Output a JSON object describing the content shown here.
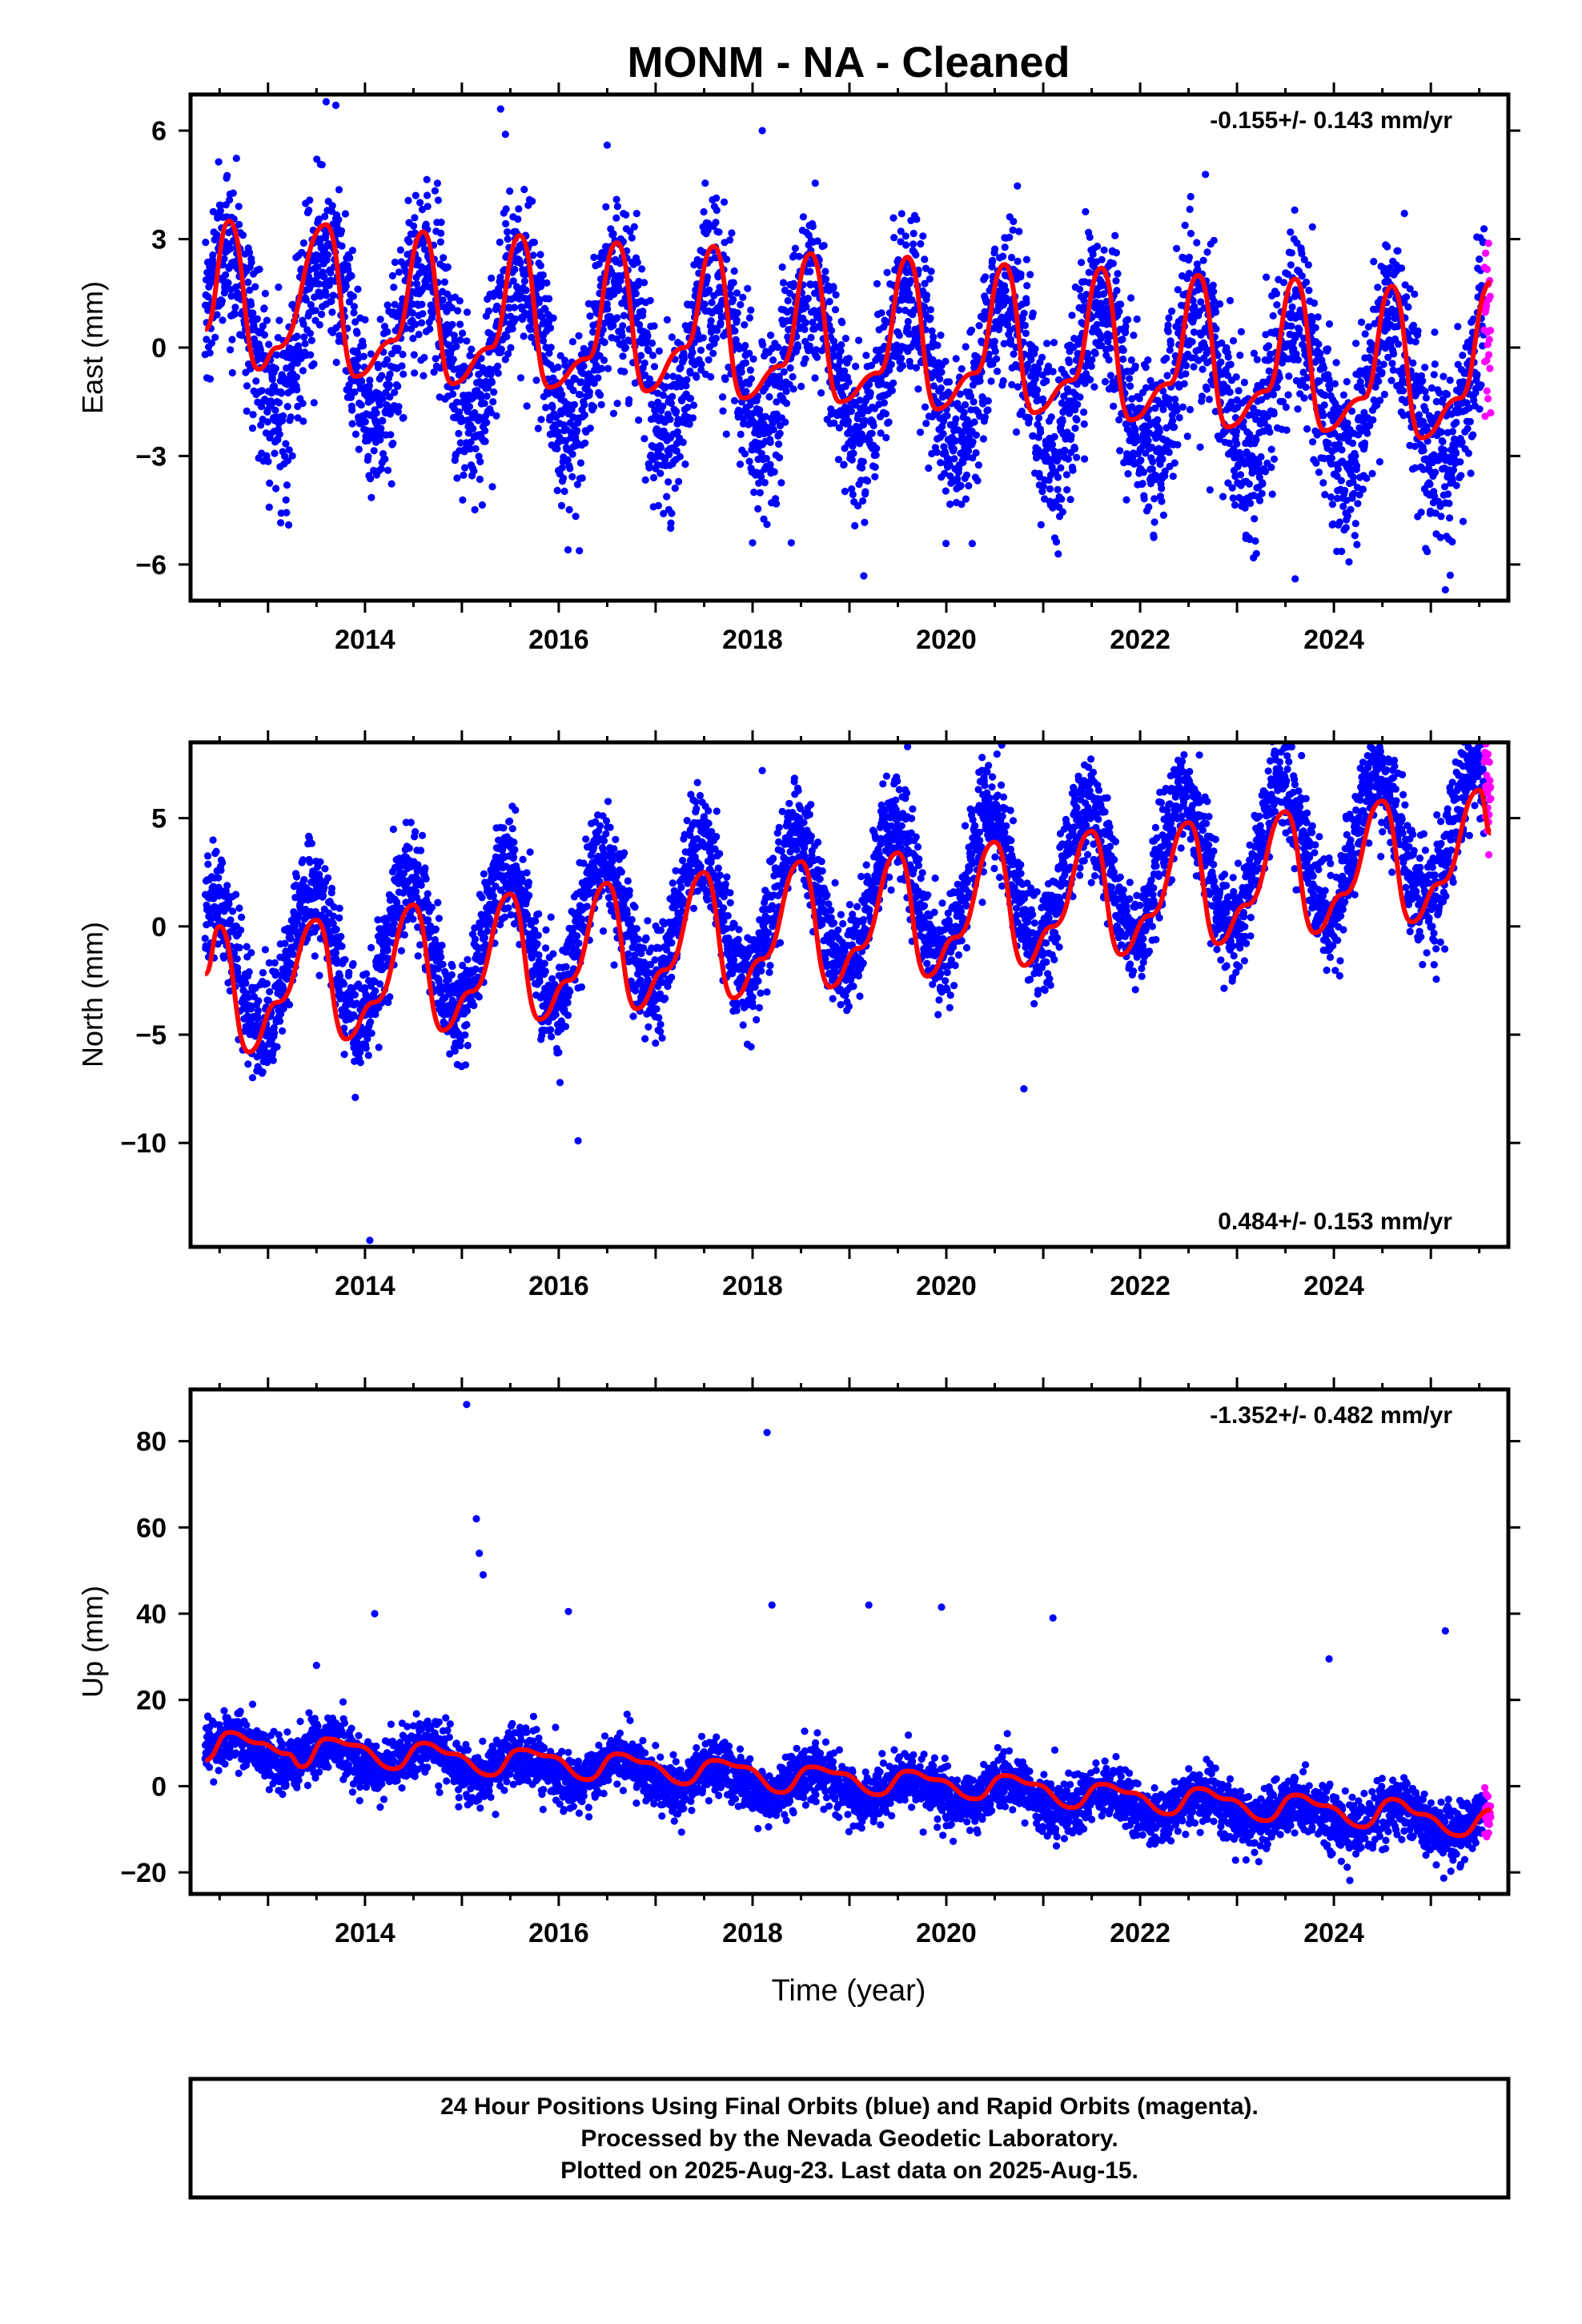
{
  "title": "MONM  - NA - Cleaned",
  "xlabel": "Time (year)",
  "footer": [
    "24 Hour Positions Using Final Orbits (blue) and Rapid Orbits (magenta).",
    "Processed by the Nevada Geodetic Laboratory.",
    "Plotted on 2025-Aug-23. Last data on 2025-Aug-15."
  ],
  "colors": {
    "final": "#0000ff",
    "rapid": "#ff00ff",
    "fit": "#ff0000",
    "frame": "#000000"
  },
  "chart_data": [
    {
      "type": "scatter",
      "ylabel": "East (mm)",
      "rate_label": "-0.155+/- 0.143 mm/yr",
      "rate_position": "top-right",
      "xlim": [
        2012.2,
        2025.8
      ],
      "ylim": [
        -7,
        7
      ],
      "xticks": [
        2014,
        2016,
        2018,
        2020,
        2022,
        2024
      ],
      "yticks": [
        6,
        3,
        0,
        -3,
        -6
      ],
      "ytick_labels": [
        "6",
        "3",
        "0",
        "−3",
        "−6"
      ],
      "data_start": 2012.35,
      "data_end": 2025.62,
      "rapid_start": 2025.55,
      "trend": {
        "offset_at_start": 0.6,
        "rate_mm_per_yr": -0.155,
        "annual_amp": 2.1,
        "annual_peak": 0.6,
        "noise": 1.2
      },
      "outliers": [
        [
          2013.6,
          6.8
        ],
        [
          2013.7,
          6.7
        ],
        [
          2015.4,
          6.6
        ],
        [
          2015.45,
          5.9
        ],
        [
          2016.5,
          5.6
        ],
        [
          2018.1,
          6.0
        ],
        [
          2018.0,
          -5.4
        ],
        [
          2018.4,
          -5.4
        ],
        [
          2023.2,
          -5.7
        ],
        [
          2023.6,
          -6.4
        ],
        [
          2025.15,
          -6.7
        ],
        [
          2025.2,
          -6.3
        ]
      ],
      "fit_series": {
        "name": "",
        "points": [
          [
            2012.35,
            0.5
          ],
          [
            2012.6,
            3.5
          ],
          [
            2012.9,
            -0.6
          ],
          [
            2013.1,
            0.0
          ],
          [
            2013.6,
            3.4
          ],
          [
            2013.9,
            -0.8
          ],
          [
            2014.3,
            0.2
          ],
          [
            2014.6,
            3.2
          ],
          [
            2014.9,
            -1.0
          ],
          [
            2015.3,
            0.0
          ],
          [
            2015.6,
            3.1
          ],
          [
            2015.9,
            -1.1
          ],
          [
            2016.3,
            -0.3
          ],
          [
            2016.6,
            2.9
          ],
          [
            2016.9,
            -1.2
          ],
          [
            2017.3,
            0.0
          ],
          [
            2017.6,
            2.8
          ],
          [
            2017.9,
            -1.4
          ],
          [
            2018.3,
            -0.5
          ],
          [
            2018.6,
            2.6
          ],
          [
            2018.9,
            -1.5
          ],
          [
            2019.3,
            -0.7
          ],
          [
            2019.6,
            2.5
          ],
          [
            2019.9,
            -1.7
          ],
          [
            2020.3,
            -0.7
          ],
          [
            2020.6,
            2.3
          ],
          [
            2020.9,
            -1.8
          ],
          [
            2021.3,
            -0.9
          ],
          [
            2021.6,
            2.2
          ],
          [
            2021.9,
            -2.0
          ],
          [
            2022.3,
            -1.0
          ],
          [
            2022.6,
            2.0
          ],
          [
            2022.9,
            -2.2
          ],
          [
            2023.3,
            -1.2
          ],
          [
            2023.6,
            1.9
          ],
          [
            2023.9,
            -2.3
          ],
          [
            2024.3,
            -1.4
          ],
          [
            2024.6,
            1.7
          ],
          [
            2024.9,
            -2.5
          ],
          [
            2025.3,
            -1.4
          ],
          [
            2025.62,
            1.8
          ]
        ]
      }
    },
    {
      "type": "scatter",
      "ylabel": "North (mm)",
      "rate_label": "0.484+/- 0.153 mm/yr",
      "rate_position": "bottom-right",
      "xlim": [
        2012.2,
        2025.8
      ],
      "ylim": [
        -14.8,
        8.5
      ],
      "xticks": [
        2014,
        2016,
        2018,
        2020,
        2022,
        2024
      ],
      "yticks": [
        5,
        0,
        -5,
        -10
      ],
      "ytick_labels": [
        "5",
        "0",
        "−5",
        "−10"
      ],
      "data_start": 2012.35,
      "data_end": 2025.62,
      "rapid_start": 2025.55,
      "trend": {
        "offset_at_start": -2.0,
        "rate_mm_per_yr": 0.484,
        "annual_amp": 3.2,
        "annual_peak": 0.45,
        "noise": 1.2
      },
      "outliers": [
        [
          2014.05,
          -14.5
        ],
        [
          2016.2,
          -9.9
        ],
        [
          2013.9,
          -7.9
        ],
        [
          2020.8,
          -7.5
        ],
        [
          2018.1,
          7.2
        ],
        [
          2019.6,
          8.3
        ]
      ],
      "fit_series": {
        "name": "",
        "points": [
          [
            2012.35,
            -2.2
          ],
          [
            2012.5,
            0.0
          ],
          [
            2012.8,
            -5.8
          ],
          [
            2013.1,
            -3.5
          ],
          [
            2013.5,
            0.3
          ],
          [
            2013.8,
            -5.2
          ],
          [
            2014.1,
            -3.5
          ],
          [
            2014.5,
            1.0
          ],
          [
            2014.8,
            -4.8
          ],
          [
            2015.1,
            -3.0
          ],
          [
            2015.5,
            1.5
          ],
          [
            2015.8,
            -4.3
          ],
          [
            2016.1,
            -2.5
          ],
          [
            2016.5,
            2.0
          ],
          [
            2016.8,
            -3.8
          ],
          [
            2017.1,
            -2.0
          ],
          [
            2017.5,
            2.5
          ],
          [
            2017.8,
            -3.3
          ],
          [
            2018.1,
            -1.5
          ],
          [
            2018.5,
            3.0
          ],
          [
            2018.8,
            -2.8
          ],
          [
            2019.1,
            -1.0
          ],
          [
            2019.5,
            3.4
          ],
          [
            2019.8,
            -2.3
          ],
          [
            2020.1,
            -0.5
          ],
          [
            2020.5,
            3.9
          ],
          [
            2020.8,
            -1.8
          ],
          [
            2021.1,
            0.0
          ],
          [
            2021.5,
            4.4
          ],
          [
            2021.8,
            -1.3
          ],
          [
            2022.1,
            0.5
          ],
          [
            2022.5,
            4.8
          ],
          [
            2022.8,
            -0.8
          ],
          [
            2023.1,
            1.0
          ],
          [
            2023.5,
            5.3
          ],
          [
            2023.8,
            -0.3
          ],
          [
            2024.1,
            1.5
          ],
          [
            2024.5,
            5.8
          ],
          [
            2024.8,
            0.2
          ],
          [
            2025.1,
            2.0
          ],
          [
            2025.5,
            6.3
          ],
          [
            2025.62,
            4.3
          ]
        ]
      }
    },
    {
      "type": "scatter",
      "ylabel": "Up (mm)",
      "xlabel": "Time (year)",
      "rate_label": "-1.352+/- 0.482 mm/yr",
      "rate_position": "top-right",
      "xlim": [
        2012.2,
        2025.8
      ],
      "ylim": [
        -25,
        92
      ],
      "xticks": [
        2014,
        2016,
        2018,
        2020,
        2022,
        2024
      ],
      "yticks": [
        80,
        60,
        40,
        20,
        0,
        -20
      ],
      "ytick_labels": [
        "80",
        "60",
        "40",
        "20",
        "0",
        "−20"
      ],
      "data_start": 2012.35,
      "data_end": 2025.62,
      "rapid_start": 2025.55,
      "trend": {
        "offset_at_start": 9.0,
        "rate_mm_per_yr": -1.352,
        "annual_amp": 3.0,
        "annual_peak": 0.65,
        "noise": 3.2
      },
      "outliers": [
        [
          2015.05,
          88.5
        ],
        [
          2015.15,
          62
        ],
        [
          2015.18,
          54
        ],
        [
          2015.22,
          49
        ],
        [
          2018.15,
          82
        ],
        [
          2018.2,
          42
        ],
        [
          2014.1,
          40
        ],
        [
          2016.1,
          40.5
        ],
        [
          2019.2,
          42
        ],
        [
          2019.95,
          41.5
        ],
        [
          2021.1,
          39
        ],
        [
          2023.95,
          29.5
        ],
        [
          2025.15,
          36
        ],
        [
          2013.5,
          28
        ]
      ],
      "fit_series": {
        "name": "",
        "points": [
          [
            2012.35,
            6.0
          ],
          [
            2012.6,
            12.5
          ],
          [
            2012.9,
            10.0
          ],
          [
            2013.2,
            7.5
          ],
          [
            2013.35,
            4.5
          ],
          [
            2013.6,
            11.0
          ],
          [
            2013.9,
            9.5
          ],
          [
            2014.3,
            4.0
          ],
          [
            2014.6,
            10.0
          ],
          [
            2014.9,
            7.5
          ],
          [
            2015.3,
            2.5
          ],
          [
            2015.6,
            8.5
          ],
          [
            2015.9,
            7.0
          ],
          [
            2016.3,
            1.5
          ],
          [
            2016.6,
            7.5
          ],
          [
            2016.9,
            5.5
          ],
          [
            2017.3,
            0.5
          ],
          [
            2017.6,
            6.0
          ],
          [
            2017.9,
            4.5
          ],
          [
            2018.3,
            -1.5
          ],
          [
            2018.6,
            4.5
          ],
          [
            2018.9,
            3.0
          ],
          [
            2019.3,
            -2.0
          ],
          [
            2019.6,
            3.5
          ],
          [
            2019.9,
            1.5
          ],
          [
            2020.3,
            -3.0
          ],
          [
            2020.6,
            2.5
          ],
          [
            2020.9,
            0.5
          ],
          [
            2021.3,
            -5.0
          ],
          [
            2021.6,
            0.5
          ],
          [
            2021.9,
            -1.5
          ],
          [
            2022.3,
            -6.5
          ],
          [
            2022.6,
            -0.5
          ],
          [
            2022.9,
            -3.0
          ],
          [
            2023.3,
            -8.0
          ],
          [
            2023.6,
            -2.0
          ],
          [
            2023.9,
            -4.5
          ],
          [
            2024.3,
            -9.5
          ],
          [
            2024.6,
            -3.0
          ],
          [
            2024.9,
            -6.5
          ],
          [
            2025.3,
            -11.5
          ],
          [
            2025.62,
            -5.5
          ]
        ]
      }
    }
  ]
}
